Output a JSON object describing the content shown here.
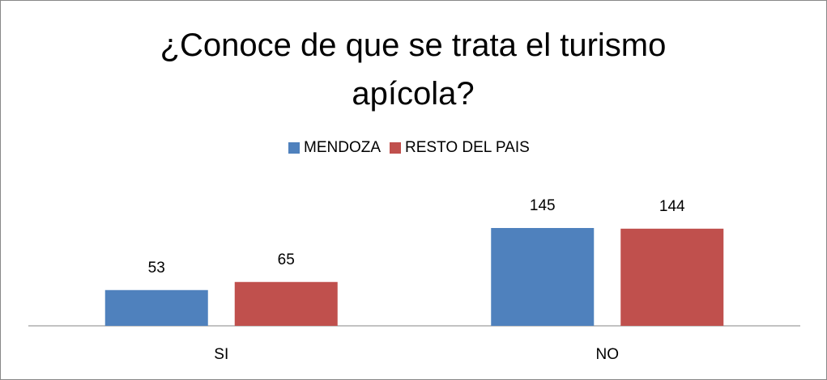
{
  "chart_data": {
    "type": "bar",
    "title": "¿Conoce de que se trata el turismo apícola?",
    "categories": [
      "SI",
      "NO"
    ],
    "series": [
      {
        "name": "MENDOZA",
        "color": "#4f81bd",
        "values": [
          53,
          145
        ]
      },
      {
        "name": "RESTO DEL PAIS",
        "color": "#c0504d",
        "values": [
          65,
          144
        ]
      }
    ],
    "legend": "top"
  }
}
